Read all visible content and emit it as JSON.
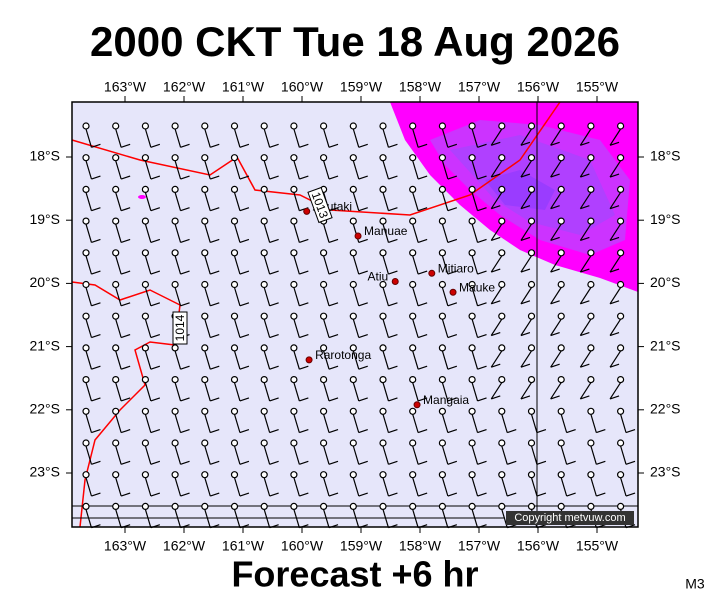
{
  "map": {
    "title": "2000 CKT Tue 18 Aug 2026",
    "footer": "Forecast +6 hr",
    "code": "M3",
    "copyright": "Copyright metvuw.com",
    "lon_ticks": [
      {
        "value": -163,
        "label": "163°W"
      },
      {
        "value": -162,
        "label": "162°W"
      },
      {
        "value": -161,
        "label": "161°W"
      },
      {
        "value": -160,
        "label": "160°W"
      },
      {
        "value": -159,
        "label": "159°W"
      },
      {
        "value": -158,
        "label": "158°W"
      },
      {
        "value": -157,
        "label": "157°W"
      },
      {
        "value": -156,
        "label": "156°W"
      },
      {
        "value": -155,
        "label": "155°W"
      }
    ],
    "lat_ticks": [
      {
        "value": -18,
        "label": "18°S"
      },
      {
        "value": -19,
        "label": "19°S"
      },
      {
        "value": -20,
        "label": "20°S"
      },
      {
        "value": -21,
        "label": "21°S"
      },
      {
        "value": -22,
        "label": "22°S"
      },
      {
        "value": -23,
        "label": "23°S"
      }
    ],
    "places": [
      {
        "name": "Aitutaki",
        "lon": -159.92,
        "lat": -18.86
      },
      {
        "name": "Manuae",
        "lon": -159.05,
        "lat": -19.25
      },
      {
        "name": "Mitiaro",
        "lon": -157.8,
        "lat": -19.84
      },
      {
        "name": "Atiu",
        "lon": -158.42,
        "lat": -19.97
      },
      {
        "name": "Mauke",
        "lon": -157.44,
        "lat": -20.14
      },
      {
        "name": "Rarotonga",
        "lon": -159.88,
        "lat": -21.21
      },
      {
        "name": "Mangaia",
        "lon": -158.05,
        "lat": -21.92
      }
    ],
    "isobars": [
      "1014",
      "1013"
    ]
  }
}
